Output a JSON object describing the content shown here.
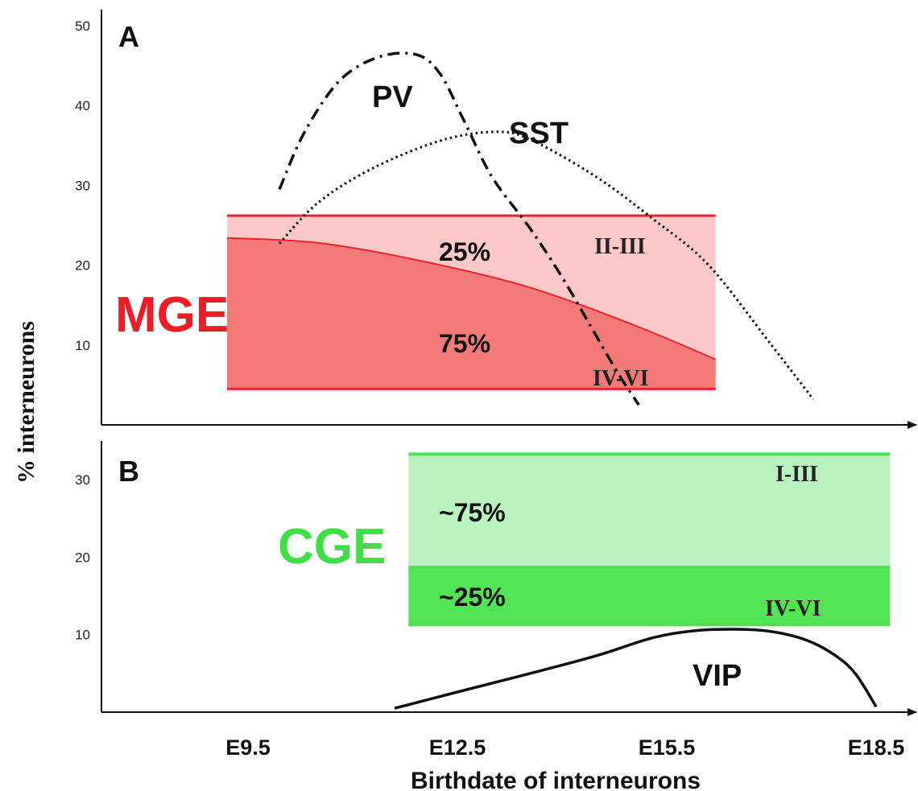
{
  "chart_data": [
    {
      "panel": "A",
      "type": "line",
      "region_label": "MGE",
      "ylabel": "% interneurons",
      "yticks": [
        10,
        20,
        30,
        40,
        50
      ],
      "ylim": [
        0,
        52
      ],
      "x_categories": [
        "E9.5",
        "E12.5",
        "E15.5",
        "E18.5"
      ],
      "x_numeric": [
        9.5,
        12.5,
        15.5,
        18.5
      ],
      "xlim": [
        7.4,
        19.1
      ],
      "band": {
        "x_range": [
          9.2,
          16.2
        ],
        "y_range": [
          4.5,
          26.2
        ],
        "upper_label": "II-III",
        "lower_label": "IV-VI",
        "upper_share": "25%",
        "lower_share": "75%",
        "divider": {
          "x": [
            9.2,
            10.5,
            12.0,
            13.5,
            15.0,
            16.2
          ],
          "y": [
            23.4,
            22.8,
            20.5,
            17.3,
            12.6,
            8.2
          ]
        },
        "color_upper": "#fcc8c8",
        "color_lower": "#f47a7a",
        "border_color": "#e8252f"
      },
      "series": [
        {
          "name": "PV",
          "style": "dashdot",
          "x": [
            9.95,
            10.3,
            10.8,
            11.35,
            11.9,
            12.25,
            12.6,
            13.0,
            13.55,
            14.0,
            14.4,
            14.8,
            15.1
          ],
          "y": [
            29.5,
            36.5,
            43.0,
            46.0,
            46.4,
            44.0,
            38.0,
            31.0,
            24.5,
            18.5,
            12.5,
            6.5,
            2.5
          ]
        },
        {
          "name": "SST",
          "style": "dotted",
          "x": [
            9.95,
            10.5,
            11.3,
            12.3,
            13.1,
            13.6,
            14.5,
            15.3,
            16.1,
            17.0,
            17.6
          ],
          "y": [
            22.7,
            27.8,
            32.2,
            35.7,
            36.7,
            35.5,
            31.0,
            25.8,
            20.0,
            10.0,
            3.2
          ]
        }
      ]
    },
    {
      "panel": "B",
      "type": "line",
      "region_label": "CGE",
      "yticks": [
        10,
        20,
        30
      ],
      "ylim": [
        0,
        35
      ],
      "x_categories": [
        "E9.5",
        "E12.5",
        "E15.5",
        "E18.5"
      ],
      "x_numeric": [
        9.5,
        12.5,
        15.5,
        18.5
      ],
      "xlim": [
        7.4,
        19.1
      ],
      "xlabel": "Birthdate of interneurons",
      "band": {
        "x_range": [
          11.8,
          18.7
        ],
        "y_range": [
          11.3,
          33.3
        ],
        "divider_y": 18.7,
        "upper_label": "I-III",
        "lower_label": "IV-VI",
        "upper_share": "~75%",
        "lower_share": "~25%",
        "color_upper": "#b9f2bf",
        "color_lower": "#52e553",
        "border_color": "#4ce052"
      },
      "series": [
        {
          "name": "VIP",
          "style": "solid",
          "x": [
            11.6,
            12.5,
            13.5,
            14.5,
            15.3,
            15.9,
            16.5,
            17.0,
            17.5,
            17.9,
            18.2,
            18.5
          ],
          "y": [
            0.5,
            2.6,
            4.9,
            7.3,
            9.6,
            10.5,
            10.7,
            10.4,
            9.3,
            7.4,
            5.0,
            0.7
          ]
        }
      ]
    }
  ],
  "colors": {
    "mge": "#ee1c24",
    "cge": "#3fe046",
    "ink": "#111111"
  }
}
